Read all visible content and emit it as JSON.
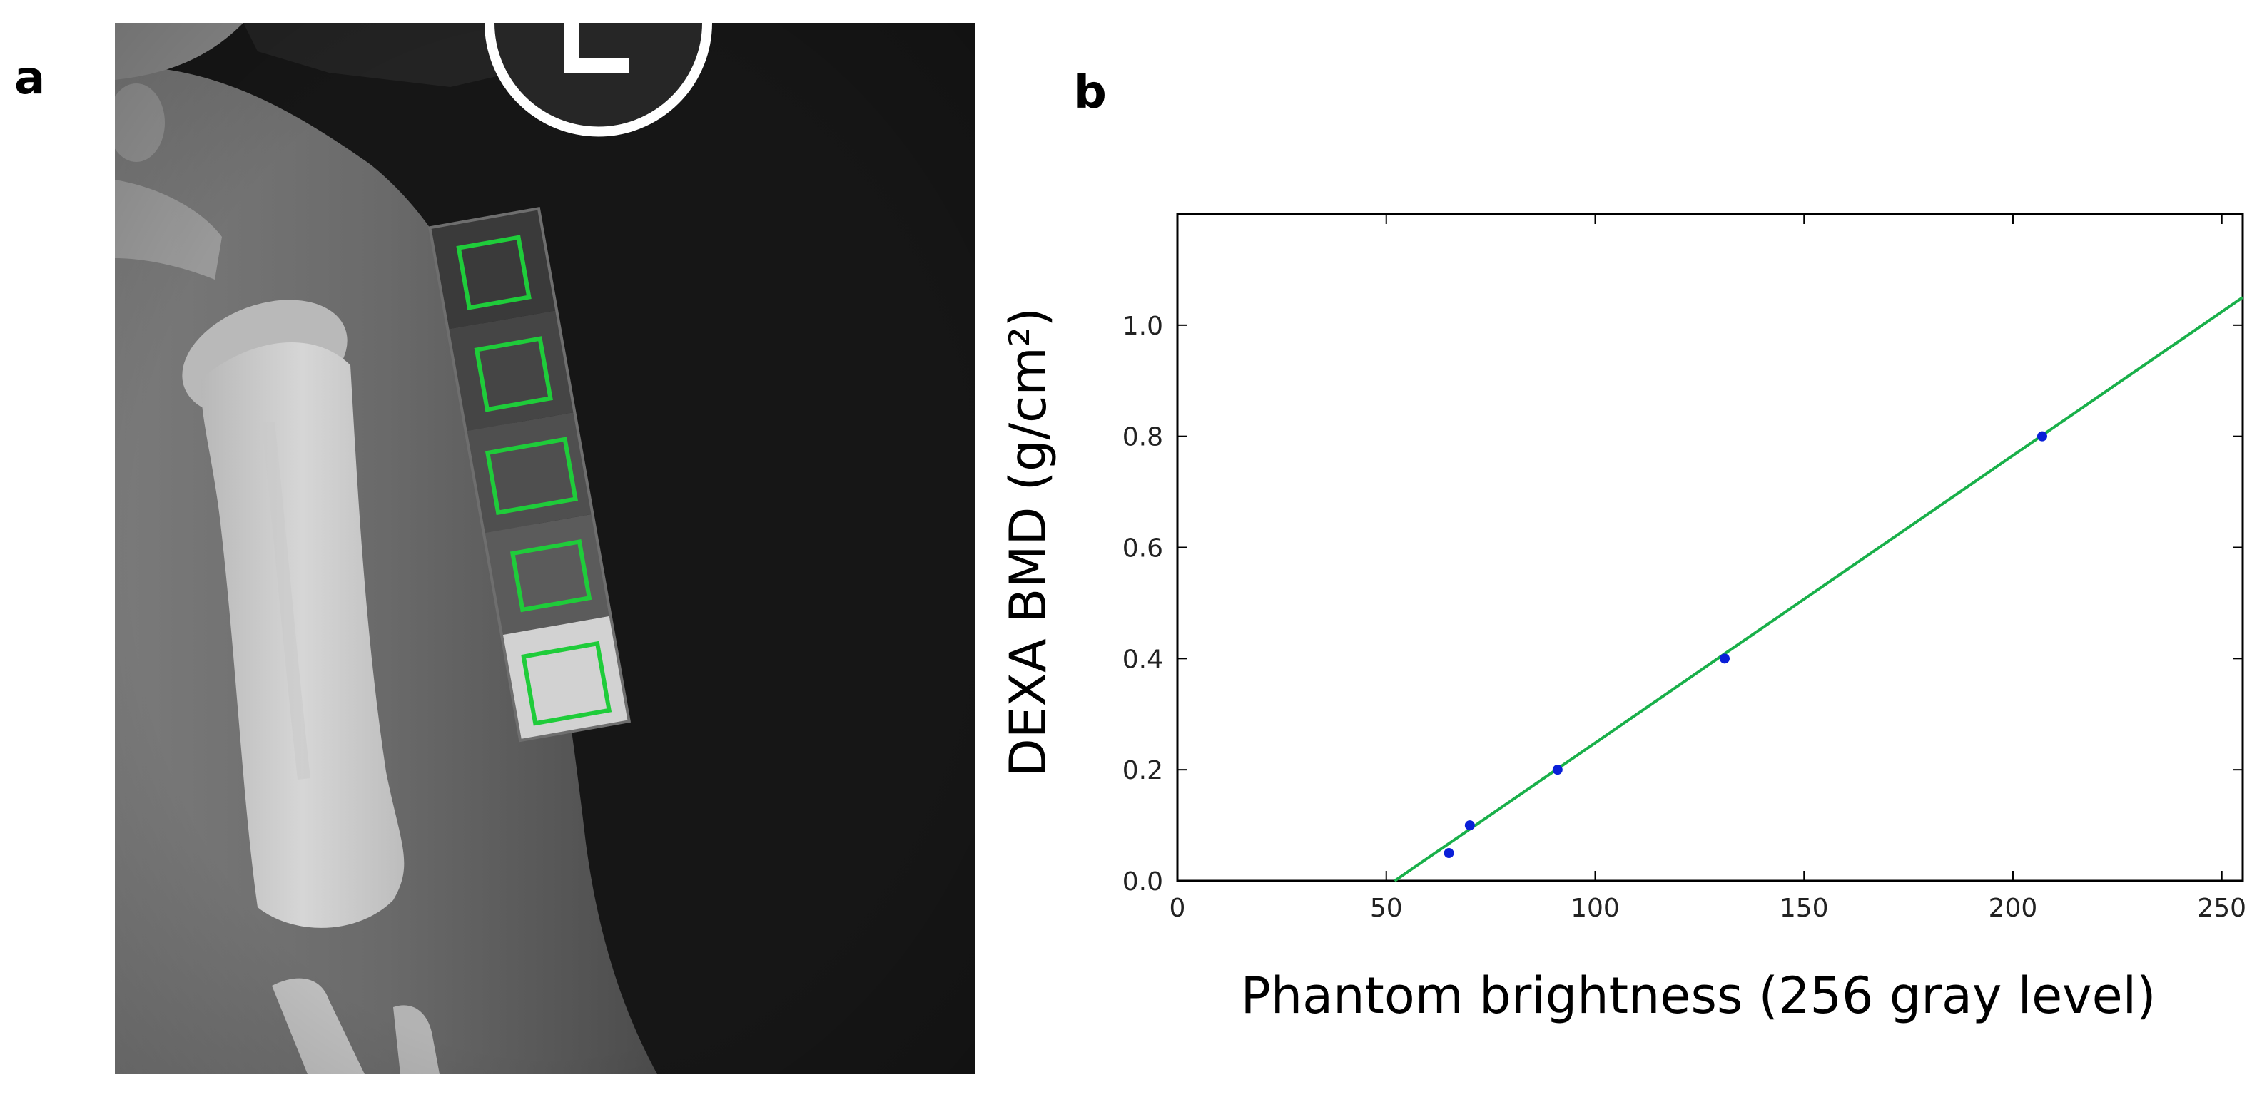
{
  "panels": {
    "a_label": "a",
    "b_label": "b"
  },
  "xray": {
    "marker_letter": "L",
    "roi_color": "#1fcc3a",
    "roi_count": 5
  },
  "chart_data": {
    "type": "scatter",
    "xlabel": "Phantom brightness (256 gray level)",
    "ylabel": "DEXA BMD (g/cm²)",
    "xlim": [
      0,
      255
    ],
    "ylim": [
      0,
      1.2
    ],
    "xticks": [
      0,
      50,
      100,
      150,
      200,
      250
    ],
    "yticks": [
      0.0,
      0.2,
      0.4,
      0.6,
      0.8,
      1.0
    ],
    "xtick_labels": [
      "0",
      "50",
      "100",
      "150",
      "200",
      "250"
    ],
    "ytick_labels": [
      "0.0",
      "0.2",
      "0.4",
      "0.6",
      "0.8",
      "1.0"
    ],
    "grid": false,
    "points": {
      "x": [
        65,
        70,
        91,
        131,
        207
      ],
      "y": [
        0.05,
        0.1,
        0.2,
        0.4,
        0.8
      ],
      "color": "#0a1fd8"
    },
    "fit_line": {
      "x": [
        52,
        255
      ],
      "y": [
        0.0,
        1.05
      ],
      "color": "#19b04a"
    }
  }
}
